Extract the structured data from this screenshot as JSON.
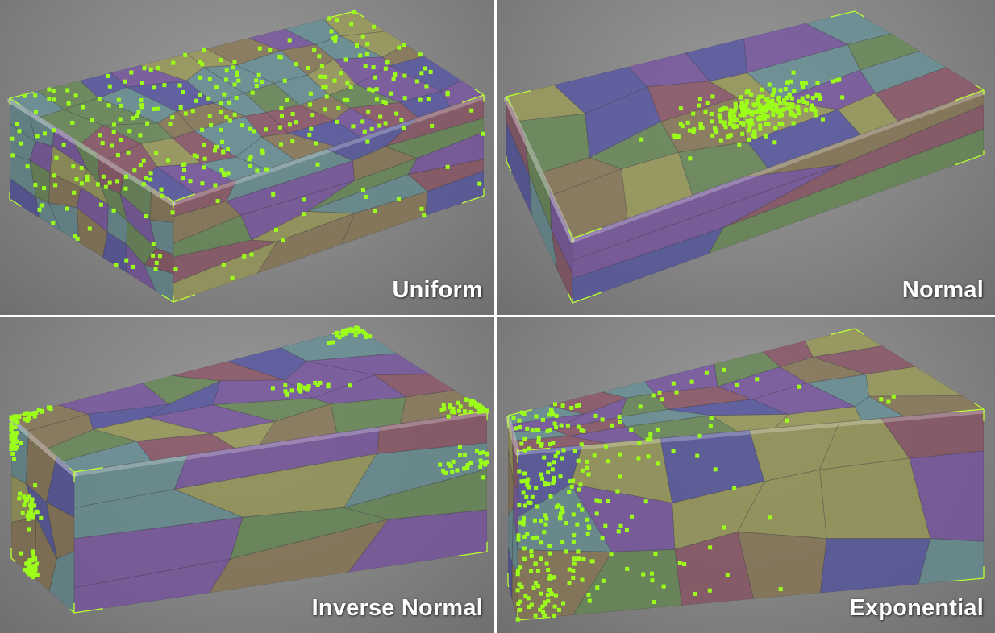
{
  "panels": [
    {
      "label": "Uniform",
      "distribution": "uniform"
    },
    {
      "label": "Normal",
      "distribution": "normal"
    },
    {
      "label": "Inverse Normal",
      "distribution": "inverse-normal"
    },
    {
      "label": "Exponential",
      "distribution": "exponential"
    }
  ],
  "colors": {
    "background": "#808080",
    "cell_palette": [
      "#7a5aa0",
      "#6b8a5a",
      "#9a9a5c",
      "#6a8f94",
      "#8c5a6a",
      "#5a5aa0",
      "#8a7a5a"
    ],
    "points": "#9cff1a",
    "bounding_box": "#b8ff30"
  }
}
